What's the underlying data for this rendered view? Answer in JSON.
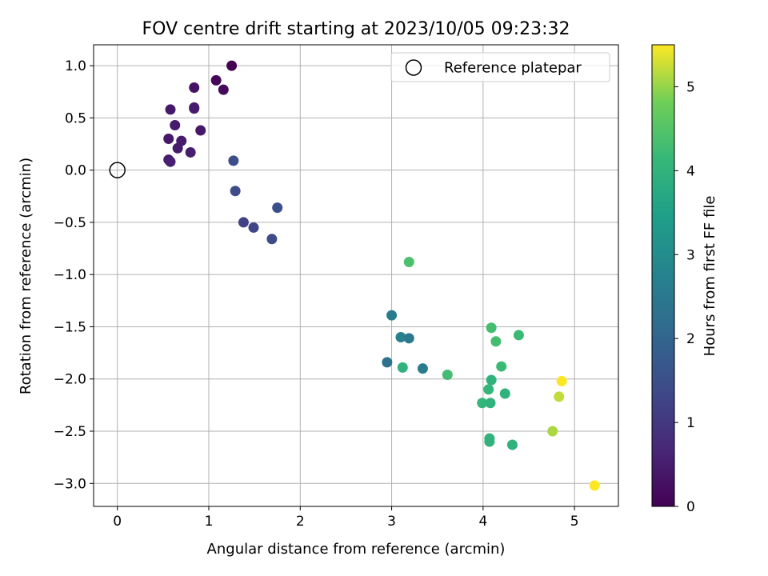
{
  "chart_data": {
    "type": "scatter",
    "title": "FOV centre drift starting at 2023/10/05 09:23:32",
    "xlabel": "Angular distance from reference (arcmin)",
    "ylabel": "Rotation from reference (arcmin)",
    "xlim": [
      -0.26,
      5.48
    ],
    "ylim": [
      -3.22,
      1.2
    ],
    "xticks": [
      0,
      1,
      2,
      3,
      4,
      5
    ],
    "yticks": [
      1.0,
      0.5,
      0.0,
      -0.5,
      -1.0,
      -1.5,
      -2.0,
      -2.5,
      -3.0
    ],
    "xtick_labels": [
      "0",
      "1",
      "2",
      "3",
      "4",
      "5"
    ],
    "ytick_labels": [
      "1.0",
      "0.5",
      "0.0",
      "−0.5",
      "−1.0",
      "−1.5",
      "−2.0",
      "−2.5",
      "−3.0"
    ],
    "grid": true,
    "legend": {
      "placement": "top-right",
      "entries": [
        {
          "label": "Reference platepar",
          "marker": "hollow-circle"
        }
      ]
    },
    "reference_point": {
      "x": 0,
      "y": 0
    },
    "colormap": "viridis",
    "colorbar": {
      "label": "Hours from first FF file",
      "range": [
        0,
        5.5
      ],
      "ticks": [
        0,
        1,
        2,
        3,
        4,
        5
      ],
      "tick_labels": [
        "0",
        "1",
        "2",
        "3",
        "4",
        "5"
      ]
    },
    "points": [
      {
        "x": 1.25,
        "y": 1.0,
        "hours": 0.0
      },
      {
        "x": 1.08,
        "y": 0.86,
        "hours": 0.1
      },
      {
        "x": 1.16,
        "y": 0.77,
        "hours": 0.15
      },
      {
        "x": 0.84,
        "y": 0.79,
        "hours": 0.3
      },
      {
        "x": 0.58,
        "y": 0.58,
        "hours": 0.4
      },
      {
        "x": 0.84,
        "y": 0.59,
        "hours": 0.4
      },
      {
        "x": 0.84,
        "y": 0.6,
        "hours": 0.45
      },
      {
        "x": 0.63,
        "y": 0.43,
        "hours": 0.45
      },
      {
        "x": 0.91,
        "y": 0.38,
        "hours": 0.4
      },
      {
        "x": 0.56,
        "y": 0.3,
        "hours": 0.4
      },
      {
        "x": 0.7,
        "y": 0.28,
        "hours": 0.45
      },
      {
        "x": 0.66,
        "y": 0.21,
        "hours": 0.45
      },
      {
        "x": 0.8,
        "y": 0.17,
        "hours": 0.5
      },
      {
        "x": 0.56,
        "y": 0.1,
        "hours": 0.5
      },
      {
        "x": 0.58,
        "y": 0.08,
        "hours": 0.55
      },
      {
        "x": 1.27,
        "y": 0.09,
        "hours": 1.5
      },
      {
        "x": 1.29,
        "y": -0.2,
        "hours": 1.4
      },
      {
        "x": 1.75,
        "y": -0.36,
        "hours": 1.5
      },
      {
        "x": 1.38,
        "y": -0.5,
        "hours": 1.2
      },
      {
        "x": 1.49,
        "y": -0.55,
        "hours": 1.3
      },
      {
        "x": 1.69,
        "y": -0.66,
        "hours": 1.4
      },
      {
        "x": 3.0,
        "y": -1.39,
        "hours": 2.6
      },
      {
        "x": 3.1,
        "y": -1.6,
        "hours": 2.7
      },
      {
        "x": 3.19,
        "y": -1.61,
        "hours": 2.5
      },
      {
        "x": 2.95,
        "y": -1.84,
        "hours": 2.3
      },
      {
        "x": 3.34,
        "y": -1.9,
        "hours": 2.6
      },
      {
        "x": 3.19,
        "y": -0.88,
        "hours": 4.4
      },
      {
        "x": 3.12,
        "y": -1.89,
        "hours": 4.0
      },
      {
        "x": 3.61,
        "y": -1.96,
        "hours": 4.3
      },
      {
        "x": 4.09,
        "y": -1.51,
        "hours": 4.3
      },
      {
        "x": 4.14,
        "y": -1.64,
        "hours": 4.3
      },
      {
        "x": 4.39,
        "y": -1.58,
        "hours": 4.2
      },
      {
        "x": 4.2,
        "y": -1.88,
        "hours": 4.2
      },
      {
        "x": 4.09,
        "y": -2.01,
        "hours": 4.0
      },
      {
        "x": 4.06,
        "y": -2.1,
        "hours": 4.1
      },
      {
        "x": 4.24,
        "y": -2.14,
        "hours": 4.0
      },
      {
        "x": 3.99,
        "y": -2.23,
        "hours": 4.1
      },
      {
        "x": 4.08,
        "y": -2.23,
        "hours": 4.0
      },
      {
        "x": 4.07,
        "y": -2.57,
        "hours": 4.0
      },
      {
        "x": 4.07,
        "y": -2.6,
        "hours": 4.0
      },
      {
        "x": 4.32,
        "y": -2.63,
        "hours": 4.0
      },
      {
        "x": 4.76,
        "y": -2.5,
        "hours": 5.1
      },
      {
        "x": 4.83,
        "y": -2.17,
        "hours": 5.2
      },
      {
        "x": 4.86,
        "y": -2.02,
        "hours": 5.5
      },
      {
        "x": 5.22,
        "y": -3.02,
        "hours": 5.5
      }
    ]
  }
}
